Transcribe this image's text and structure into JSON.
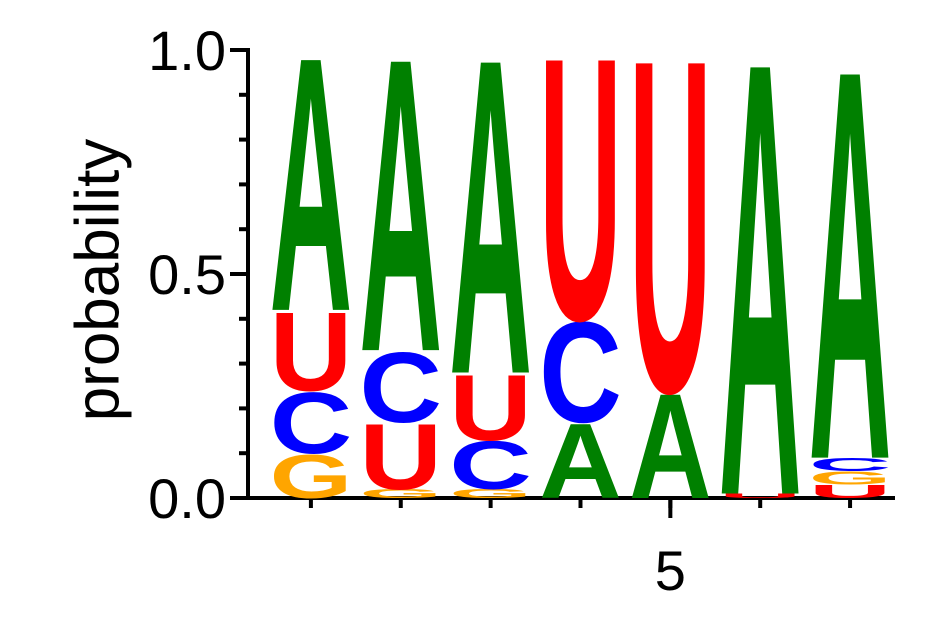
{
  "chart_data": {
    "type": "logo",
    "y_label": "probability",
    "colors": {
      "A": "#008000",
      "C": "#0000ff",
      "G": "#ffa500",
      "U": "#ff0000"
    },
    "x": [
      1,
      2,
      3,
      4,
      5,
      6,
      7
    ],
    "columns": [
      [
        {
          "name": "G",
          "value": 0.1
        },
        {
          "name": "C",
          "value": 0.14
        },
        {
          "name": "U",
          "value": 0.18
        },
        {
          "name": "A",
          "value": 0.58
        }
      ],
      [
        {
          "name": "G",
          "value": 0.02
        },
        {
          "name": "U",
          "value": 0.15
        },
        {
          "name": "C",
          "value": 0.16
        },
        {
          "name": "A",
          "value": 0.67
        }
      ],
      [
        {
          "name": "G",
          "value": 0.02
        },
        {
          "name": "C",
          "value": 0.11
        },
        {
          "name": "U",
          "value": 0.15
        },
        {
          "name": "A",
          "value": 0.72
        }
      ],
      [
        {
          "name": "A",
          "value": 0.17
        },
        {
          "name": "C",
          "value": 0.23
        },
        {
          "name": "U",
          "value": 0.6
        }
      ],
      [
        {
          "name": "A",
          "value": 0.24
        },
        {
          "name": "U",
          "value": 0.76
        }
      ],
      [
        {
          "name": "U",
          "value": 0.01
        },
        {
          "name": "A",
          "value": 0.99
        }
      ],
      [
        {
          "name": "U",
          "value": 0.03
        },
        {
          "name": "G",
          "value": 0.03
        },
        {
          "name": "C",
          "value": 0.03
        },
        {
          "name": "A",
          "value": 0.89
        }
      ]
    ],
    "xlim": [
      0.3,
      7.5
    ],
    "xticks": [
      5
    ],
    "ylim": [
      0,
      1
    ],
    "yticks": [
      {
        "value": 0,
        "label": "0.0"
      },
      {
        "value": 0.5,
        "label": "0.5"
      },
      {
        "value": 1,
        "label": "1.0"
      }
    ],
    "yminorticks": [
      0.1,
      0.2,
      0.3,
      0.4,
      0.6,
      0.7,
      0.8,
      0.9
    ]
  }
}
